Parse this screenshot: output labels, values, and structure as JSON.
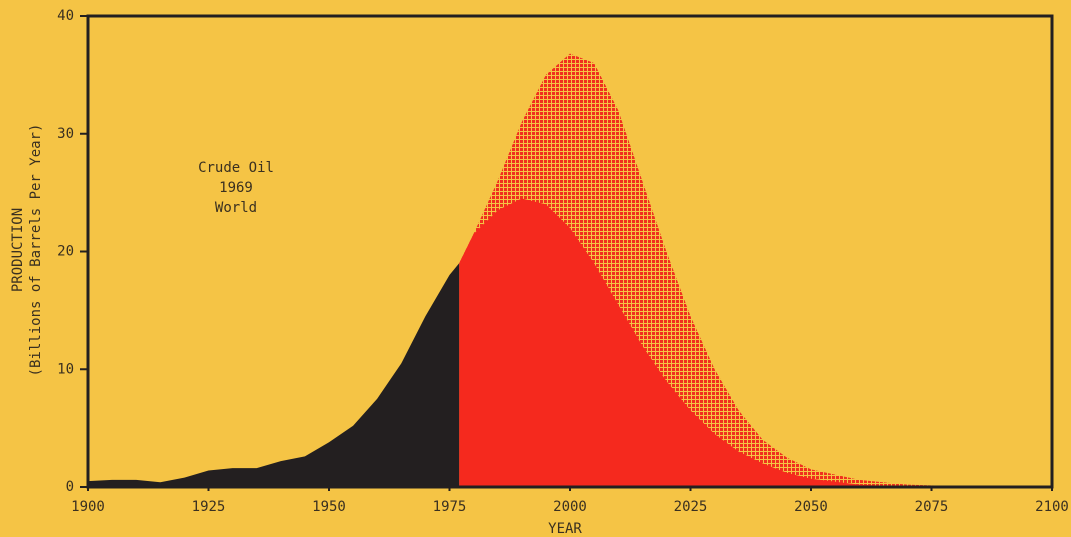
{
  "chart_data": {
    "type": "area",
    "annotation": [
      "Crude Oil",
      "1969",
      "World"
    ],
    "ylabel": [
      "PRODUCTION",
      "(Billions of Barrels Per Year)"
    ],
    "xlabel": "YEAR",
    "xlim": [
      1900,
      2100
    ],
    "xticks": [
      1900,
      1925,
      1950,
      1975,
      2000,
      2025,
      2050,
      2075,
      2100
    ],
    "ylim": [
      0,
      40
    ],
    "yticks": [
      0,
      10,
      20,
      30,
      40
    ],
    "series": [
      {
        "color": "#f0301e",
        "pattern": "dotted",
        "x": [
          1977,
          1980,
          1985,
          1990,
          1995,
          2000,
          2005,
          2010,
          2015,
          2020,
          2025,
          2030,
          2035,
          2040,
          2045,
          2050,
          2060,
          2070,
          2085
        ],
        "values": [
          19,
          21.5,
          26,
          31,
          35,
          36.8,
          36,
          32,
          26,
          20,
          14.5,
          10,
          6.5,
          4,
          2.5,
          1.5,
          0.6,
          0.2,
          0
        ]
      },
      {
        "color": "#f5291e",
        "x": [
          1977,
          1980,
          1985,
          1990,
          1995,
          2000,
          2005,
          2010,
          2015,
          2020,
          2025,
          2030,
          2035,
          2040,
          2045,
          2050,
          2060,
          2070
        ],
        "values": [
          19,
          21.5,
          23.5,
          24.5,
          24,
          22,
          19,
          15.5,
          12,
          9,
          6.5,
          4.5,
          3,
          2,
          1.2,
          0.7,
          0.2,
          0
        ]
      },
      {
        "color": "#231f20",
        "x": [
          1900,
          1905,
          1910,
          1915,
          1920,
          1925,
          1930,
          1935,
          1940,
          1945,
          1950,
          1955,
          1960,
          1965,
          1970,
          1975,
          1977
        ],
        "values": [
          0.5,
          0.6,
          0.6,
          0.4,
          0.8,
          1.4,
          1.6,
          1.6,
          2.2,
          2.6,
          3.8,
          5.2,
          7.5,
          10.5,
          14.5,
          18,
          19
        ]
      }
    ]
  }
}
